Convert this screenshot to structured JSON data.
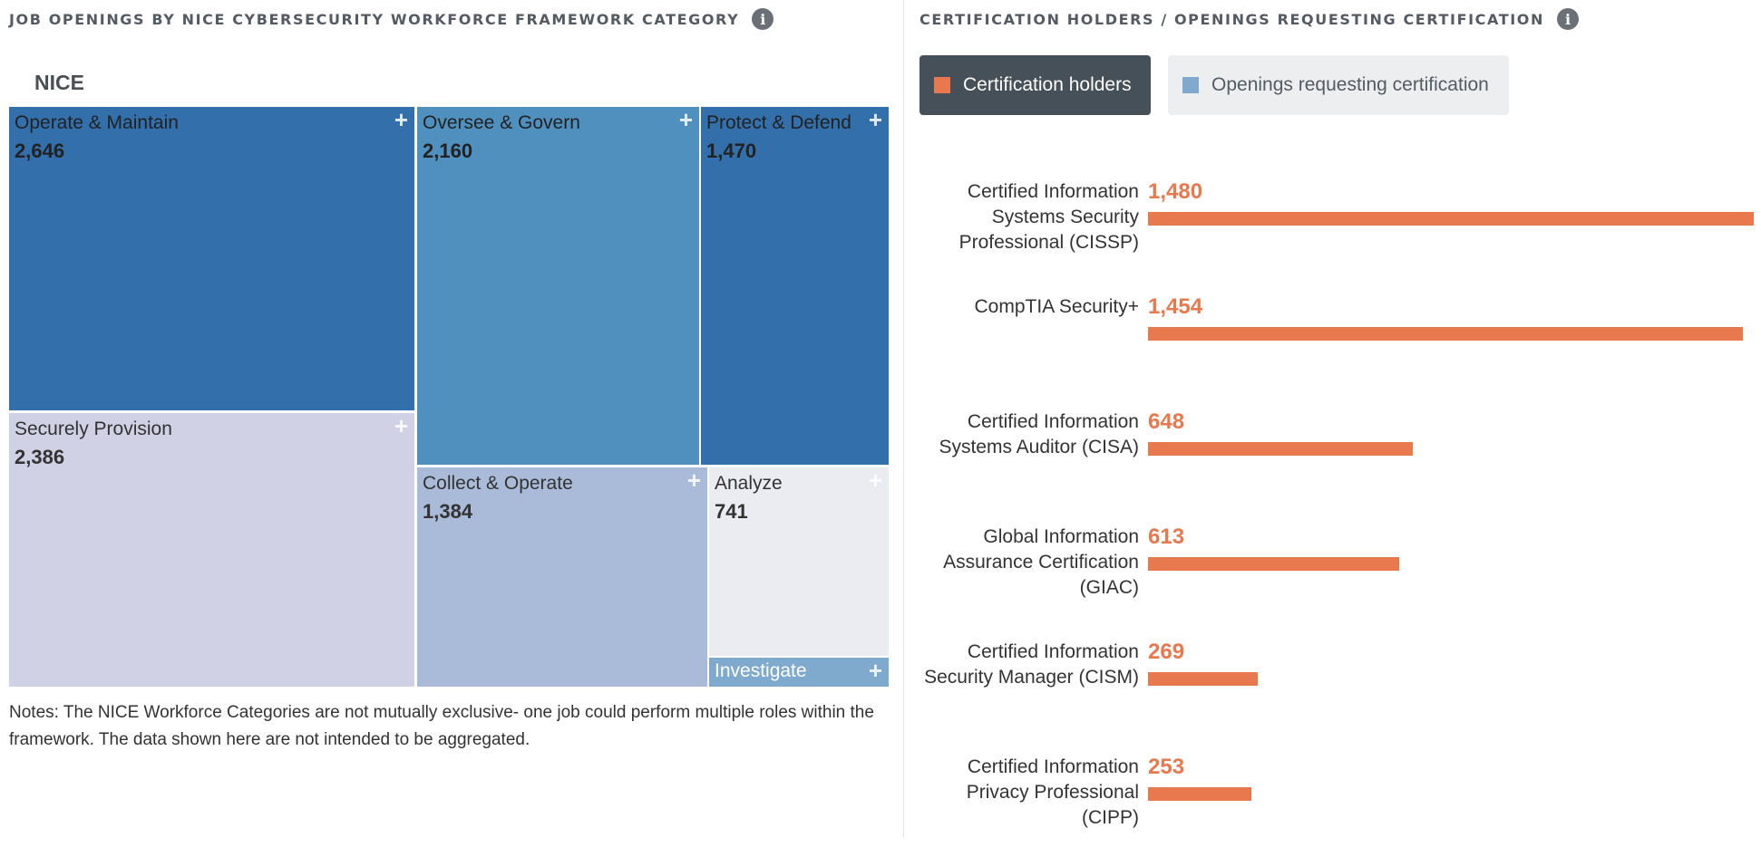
{
  "left_panel": {
    "title": "JOB OPENINGS BY NICE CYBERSECURITY WORKFORCE FRAMEWORK CATEGORY",
    "info_icon": "info-icon",
    "root_label": "NICE",
    "notes": "Notes: The NICE Workforce Categories are not mutually exclusive- one job could perform multiple roles within the framework. The data shown here are not intended to be aggregated."
  },
  "right_panel": {
    "title": "CERTIFICATION HOLDERS / OPENINGS REQUESTING CERTIFICATION",
    "info_icon": "info-icon",
    "legend": [
      {
        "label": "Certification holders",
        "color": "#e8784e",
        "active": true
      },
      {
        "label": "Openings requesting certification",
        "color": "#7faacd",
        "active": false
      }
    ]
  },
  "chart_data": [
    {
      "type": "treemap",
      "title": "JOB OPENINGS BY NICE CYBERSECURITY WORKFORCE FRAMEWORK CATEGORY",
      "root": "NICE",
      "nodes": [
        {
          "label": "Operate & Maintain",
          "value": 2646,
          "display": "2,646",
          "color": "#326fab"
        },
        {
          "label": "Securely Provision",
          "value": 2386,
          "display": "2,386",
          "color": "#d0d1e4"
        },
        {
          "label": "Oversee & Govern",
          "value": 2160,
          "display": "2,160",
          "color": "#4f90bf"
        },
        {
          "label": "Protect & Defend",
          "value": 1470,
          "display": "1,470",
          "color": "#326fab"
        },
        {
          "label": "Collect & Operate",
          "value": 1384,
          "display": "1,384",
          "color": "#a9bbd8"
        },
        {
          "label": "Analyze",
          "value": 741,
          "display": "741",
          "color": "#ebecf2"
        },
        {
          "label": "Investigate",
          "value": null,
          "display": "",
          "color": "#7faacd"
        }
      ]
    },
    {
      "type": "bar",
      "orientation": "horizontal",
      "title": "CERTIFICATION HOLDERS / OPENINGS REQUESTING CERTIFICATION",
      "series": [
        {
          "name": "Certification holders",
          "color": "#e8784e"
        }
      ],
      "categories": [
        "Certified Information Systems Security Professional (CISSP)",
        "CompTIA Security+",
        "Certified Information Systems Auditor (CISA)",
        "Global Information Assurance Certification (GIAC)",
        "Certified Information Security Manager (CISM)",
        "Certified Information Privacy Professional (CIPP)"
      ],
      "values": [
        1480,
        1454,
        648,
        613,
        269,
        253
      ],
      "value_labels": [
        "1,480",
        "1,454",
        "648",
        "613",
        "269",
        "253"
      ],
      "xlim": [
        0,
        1480
      ]
    }
  ]
}
